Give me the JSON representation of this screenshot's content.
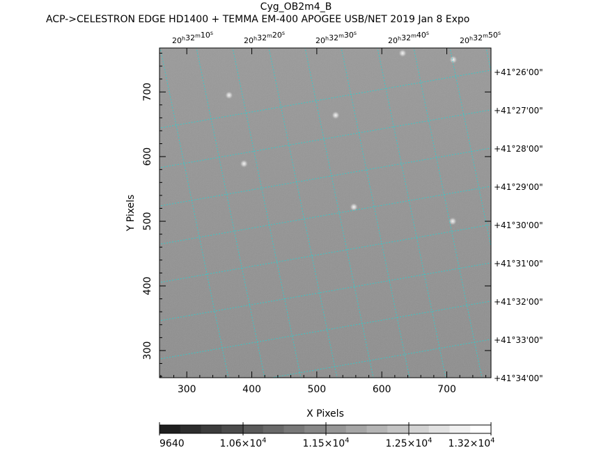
{
  "header": {
    "title": "Cyg_OB2m4_B",
    "subtitle": "ACP->CELESTRON EDGE HD1400 + TEMMA EM-400 APOGEE USB/NET   2019 Jan  8     Expo"
  },
  "chart_data": {
    "type": "heatmap",
    "xlabel": "X Pixels",
    "ylabel": "Y Pixels",
    "xlim": [
      258,
      768
    ],
    "ylim": [
      258,
      768
    ],
    "x_ticks": [
      300,
      400,
      500,
      600,
      700
    ],
    "y_ticks": [
      300,
      400,
      500,
      600,
      700
    ],
    "ra_ticks": [
      {
        "h": "20",
        "m": "32",
        "s": "10"
      },
      {
        "h": "20",
        "m": "32",
        "s": "20"
      },
      {
        "h": "20",
        "m": "32",
        "s": "30"
      },
      {
        "h": "20",
        "m": "32",
        "s": "40"
      },
      {
        "h": "20",
        "m": "32",
        "s": "50"
      }
    ],
    "dec_ticks": [
      "+41°26'00\"",
      "+41°27'00\"",
      "+41°28'00\"",
      "+41°29'00\"",
      "+41°30'00\"",
      "+41°31'00\"",
      "+41°32'00\"",
      "+41°33'00\"",
      "+41°34'00\""
    ],
    "colorbar": {
      "min": 9640,
      "max": 13200,
      "labels": [
        {
          "mant": "9640",
          "exp": ""
        },
        {
          "mant": "1.06×10",
          "exp": "4"
        },
        {
          "mant": "1.15×10",
          "exp": "4"
        },
        {
          "mant": "1.25×10",
          "exp": "4"
        },
        {
          "mant": "1.32×10",
          "exp": "4"
        }
      ]
    },
    "stars": [
      {
        "x": 632,
        "y": 760
      },
      {
        "x": 710,
        "y": 750
      },
      {
        "x": 529,
        "y": 664
      },
      {
        "x": 388,
        "y": 589
      },
      {
        "x": 557,
        "y": 522
      },
      {
        "x": 709,
        "y": 500
      },
      {
        "x": 365,
        "y": 695
      }
    ],
    "colors": {
      "grid": "#2ad0d0",
      "axis": "#000000"
    }
  }
}
